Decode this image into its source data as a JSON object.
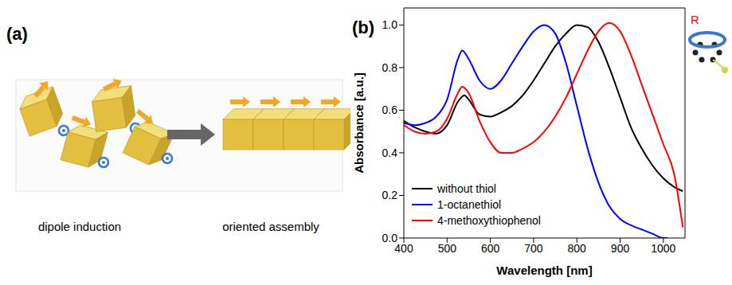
{
  "figure": {
    "panels": [
      {
        "label": "(a)",
        "captions": [
          "dipole induction",
          "oriented assembly"
        ]
      },
      {
        "label": "(b)",
        "inset_label": "R"
      }
    ]
  },
  "chart_data": {
    "type": "line",
    "x_label": "Wavelength [nm]",
    "y_label": "Absorbance [a.u.]",
    "xlim": [
      400,
      1050
    ],
    "xticks": [
      400,
      500,
      600,
      700,
      800,
      900,
      1000
    ],
    "ylim": [
      0,
      1.08
    ],
    "yticks": [
      {
        "value": 0,
        "label": "0.0"
      },
      0.2,
      0.4,
      0.6,
      0.8,
      {
        "value": 1,
        "label": "1.0"
      }
    ],
    "legend": "lower left",
    "series": [
      {
        "name": "without thiol",
        "color": "#000000",
        "x": [
          400,
          425,
          450,
          475,
          500,
          525,
          540,
          550,
          575,
          600,
          625,
          650,
          675,
          700,
          725,
          750,
          775,
          800,
          825,
          850,
          875,
          900,
          925,
          950,
          975,
          1000,
          1025,
          1045
        ],
        "values": [
          0.55,
          0.52,
          0.5,
          0.49,
          0.53,
          0.64,
          0.67,
          0.65,
          0.58,
          0.57,
          0.59,
          0.62,
          0.67,
          0.74,
          0.82,
          0.9,
          0.96,
          1.0,
          0.99,
          0.92,
          0.8,
          0.66,
          0.52,
          0.42,
          0.34,
          0.28,
          0.24,
          0.22
        ]
      },
      {
        "name": "1-octanethiol",
        "color": "#0000ff",
        "x": [
          400,
          425,
          450,
          475,
          500,
          525,
          535,
          550,
          575,
          600,
          625,
          650,
          675,
          700,
          725,
          750,
          775,
          800,
          825,
          850,
          875,
          900,
          925,
          950,
          975,
          1000,
          1010
        ],
        "values": [
          0.54,
          0.53,
          0.54,
          0.57,
          0.65,
          0.84,
          0.88,
          0.84,
          0.74,
          0.7,
          0.74,
          0.82,
          0.9,
          0.97,
          1.0,
          0.96,
          0.82,
          0.62,
          0.42,
          0.26,
          0.15,
          0.09,
          0.06,
          0.04,
          0.02,
          0.0,
          0.0
        ]
      },
      {
        "name": "4-methoxythiophenol",
        "color": "#ff0000",
        "x": [
          400,
          425,
          450,
          475,
          500,
          525,
          535,
          550,
          575,
          600,
          625,
          650,
          675,
          700,
          725,
          750,
          775,
          800,
          825,
          850,
          875,
          900,
          925,
          950,
          975,
          1000,
          1025,
          1045
        ],
        "values": [
          0.53,
          0.5,
          0.49,
          0.5,
          0.56,
          0.68,
          0.71,
          0.68,
          0.55,
          0.45,
          0.4,
          0.4,
          0.42,
          0.45,
          0.5,
          0.57,
          0.66,
          0.77,
          0.88,
          0.97,
          1.01,
          0.97,
          0.86,
          0.72,
          0.58,
          0.44,
          0.3,
          0.05
        ]
      }
    ]
  }
}
